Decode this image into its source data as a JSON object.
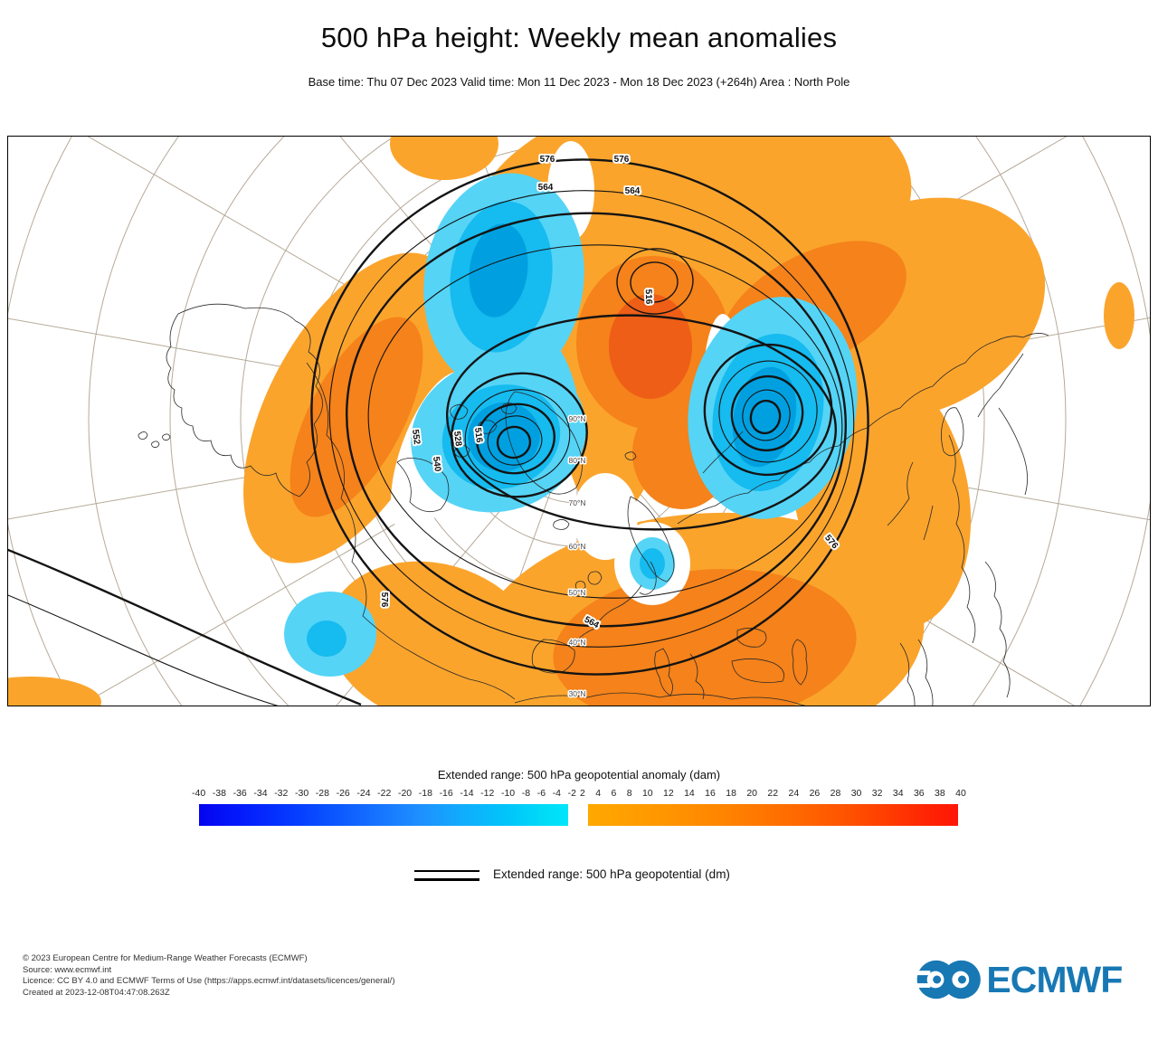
{
  "header": {
    "title": "500 hPa height: Weekly mean anomalies",
    "subtitle": "Base time: Thu 07 Dec 2023 Valid time: Mon 11 Dec 2023 - Mon 18 Dec 2023 (+264h) Area : North Pole"
  },
  "colorbar": {
    "title": "Extended range: 500 hPa geopotential anomaly (dam)",
    "negative_ticks": [
      "-40",
      "-38",
      "-36",
      "-34",
      "-32",
      "-30",
      "-28",
      "-26",
      "-24",
      "-22",
      "-20",
      "-18",
      "-16",
      "-14",
      "-12",
      "-10",
      "-8",
      "-6",
      "-4",
      "-2"
    ],
    "positive_ticks": [
      "2",
      "4",
      "6",
      "8",
      "10",
      "12",
      "14",
      "16",
      "18",
      "20",
      "22",
      "24",
      "26",
      "28",
      "30",
      "32",
      "34",
      "36",
      "38",
      "40"
    ],
    "negative_end_colors": [
      "#0404ef",
      "#00e6fa"
    ],
    "positive_end_colors": [
      "#ffa800",
      "#ff1606"
    ]
  },
  "contour_legend": {
    "label": "Extended range: 500 hPa geopotential (dm)"
  },
  "map": {
    "area": "North Pole",
    "latitude_labels": [
      "90°N",
      "80°N",
      "70°N",
      "60°N",
      "50°N",
      "40°N",
      "30°N"
    ],
    "contour_labels": {
      "top_left_576": "576",
      "top_right_576": "576",
      "top_left_564": "564",
      "top_right_564": "564",
      "core_516": "516",
      "west_552": "552",
      "west_540": "540",
      "west_528": "528",
      "west_516": "516",
      "atlantic_576": "576",
      "south_564": "564",
      "southeast_576": "576"
    },
    "anomaly_colors": {
      "positive_light": "#FBA42C",
      "positive_mid": "#F5821A",
      "positive_dark": "#EE5E17",
      "negative_light": "#55D4F6",
      "negative_mid": "#16BBEF",
      "negative_dark": "#00A0E0"
    }
  },
  "footer": {
    "line1": "© 2023 European Centre for Medium-Range Weather Forecasts (ECMWF)",
    "line2": "Source: www.ecmwf.int",
    "line3": "Licence: CC BY 4.0 and ECMWF Terms of Use (https://apps.ecmwf.int/datasets/licences/general/)",
    "line4": "Created at 2023-12-08T04:47:08.263Z"
  },
  "logo": {
    "text": "ECMWF",
    "color": "#1878b4"
  }
}
